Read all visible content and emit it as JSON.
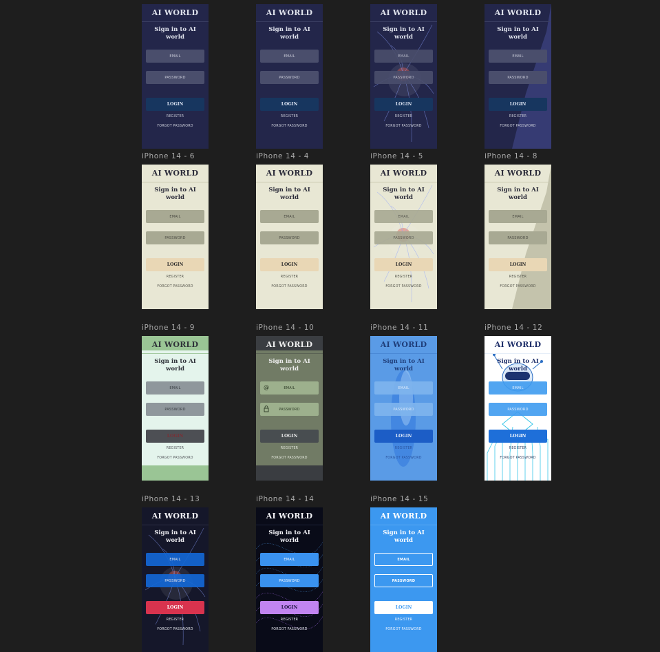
{
  "frames": [
    {
      "label": "",
      "brand": "AI WORLD",
      "headline": "Sign in to AI world",
      "email": "EMAIL",
      "password": "PASSWORD",
      "login": "LOGIN",
      "register": "REGISTER",
      "forgot": "FORGOT PASSWORD",
      "theme": "navy",
      "style": "plain",
      "has_icons": false
    },
    {
      "label": "",
      "brand": "AI WORLD",
      "headline": "Sign in to AI world",
      "email": "EMAIL",
      "password": "PASSWORD",
      "login": "LOGIN",
      "register": "REGISTER",
      "forgot": "FORGOT PASSWORD",
      "theme": "navy",
      "style": "plain",
      "has_icons": false
    },
    {
      "label": "",
      "brand": "AI WORLD",
      "headline": "Sign in to AI world",
      "email": "EMAIL",
      "password": "PASSWORD",
      "login": "LOGIN",
      "register": "REGISTER",
      "forgot": "FORGOT PASSWORD",
      "theme": "navy",
      "style": "plasma",
      "has_icons": false
    },
    {
      "label": "",
      "brand": "AI WORLD",
      "headline": "Sign in to AI world",
      "email": "EMAIL",
      "password": "PASSWORD",
      "login": "LOGIN",
      "register": "REGISTER",
      "forgot": "FORGOT PASSWORD",
      "theme": "navy",
      "style": "diagonal",
      "has_icons": false
    },
    {
      "label": "iPhone 14 - 6",
      "brand": "AI WORLD",
      "headline": "Sign in to AI world",
      "email": "EMAIL",
      "password": "PASSWORD",
      "login": "LOGIN",
      "register": "REGISTER",
      "forgot": "FORGOT PASSWORD",
      "theme": "beige",
      "style": "plain",
      "has_icons": false
    },
    {
      "label": "iPhone 14 - 4",
      "brand": "AI WORLD",
      "headline": "Sign in to AI world",
      "email": "EMAIL",
      "password": "PASSWORD",
      "login": "LOGIN",
      "register": "REGISTER",
      "forgot": "FORGOT PASSWORD",
      "theme": "beige",
      "style": "plain",
      "has_icons": false
    },
    {
      "label": "iPhone 14 - 5",
      "brand": "AI WORLD",
      "headline": "Sign in to AI world",
      "email": "EMAIL",
      "password": "PASSWORD",
      "login": "LOGIN",
      "register": "REGISTER",
      "forgot": "FORGOT PASSWORD",
      "theme": "beige",
      "style": "plasma",
      "has_icons": false
    },
    {
      "label": "iPhone 14 - 8",
      "brand": "AI WORLD",
      "headline": "Sign in to AI world",
      "email": "EMAIL",
      "password": "PASSWORD",
      "login": "LOGIN",
      "register": "REGISTER",
      "forgot": "FORGOT PASSWORD",
      "theme": "beige",
      "style": "diagonal",
      "has_icons": false
    },
    {
      "label": "iPhone 14 - 9",
      "brand": "AI WORLD",
      "headline": "Sign in to AI world",
      "email": "EMAIL",
      "password": "PASSWORD",
      "login": "LOGIN",
      "register": "REGISTER",
      "forgot": "FORGOT PASSWORD",
      "theme": "mint",
      "style": "bands",
      "has_icons": false
    },
    {
      "label": "iPhone 14 - 10",
      "brand": "AI WORLD",
      "headline": "Sign in to AI world",
      "email": "EMAIL",
      "password": "PASSWORD",
      "login": "LOGIN",
      "register": "REGISTER",
      "forgot": "FORGOT PASSWORD",
      "theme": "olive",
      "style": "bands",
      "has_icons": true
    },
    {
      "label": "iPhone 14 - 11",
      "brand": "AI WORLD",
      "headline": "Sign in to AI world",
      "email": "EMAIL",
      "password": "PASSWORD",
      "login": "LOGIN",
      "register": "REGISTER",
      "forgot": "FORGOT PASSWORD",
      "theme": "azure",
      "style": "smoke",
      "has_icons": false
    },
    {
      "label": "iPhone 14 - 12",
      "brand": "AI WORLD",
      "headline": "Sign in to AI world",
      "email": "EMAIL",
      "password": "PASSWORD",
      "login": "LOGIN",
      "register": "REGISTER",
      "forgot": "FORGOT PASSWORD",
      "theme": "robot",
      "style": "circuit",
      "has_icons": false
    },
    {
      "label": "iPhone 14 - 13",
      "brand": "AI WORLD",
      "headline": "Sign in to AI world",
      "email": "EMAIL",
      "password": "PASSWORD",
      "login": "LOGIN",
      "register": "REGISTER",
      "forgot": "FORGOT PASSWORD",
      "theme": "dark-plasma",
      "style": "plasma",
      "has_icons": false
    },
    {
      "label": "iPhone 14 - 14",
      "brand": "AI WORLD",
      "headline": "Sign in to AI world",
      "email": "EMAIL",
      "password": "PASSWORD",
      "login": "LOGIN",
      "register": "REGISTER",
      "forgot": "FORGOT PASSWORD",
      "theme": "wave",
      "style": "wave",
      "has_icons": false
    },
    {
      "label": "iPhone 14 - 15",
      "brand": "AI WORLD",
      "headline": "Sign in to AI world",
      "email": "EMAIL",
      "password": "PASSWORD",
      "login": "LOGIN",
      "register": "REGISTER",
      "forgot": "FORGOT PASSWORD",
      "theme": "sky",
      "style": "outline",
      "has_icons": false
    }
  ],
  "themes": {
    "navy": {
      "bg": "#23264a",
      "text": "#dfe2ec",
      "field": "#4a4e6c",
      "fieldText": "#c7c9d6",
      "login": "#17365f",
      "loginText": "#dbe3f2",
      "link": "#c5c8d4",
      "line": "#3b3f63"
    },
    "beige": {
      "bg": "#e8e7d4",
      "text": "#2c2c3a",
      "field": "#a8a993",
      "fieldText": "#4c4c44",
      "login": "#e9d7b5",
      "loginText": "#2c2c2c",
      "link": "#55554c",
      "line": "#c9c8b0"
    },
    "mint": {
      "bg": "#e4f4ec",
      "text": "#2e3138",
      "field": "#8f979c",
      "fieldText": "#3b4045",
      "login": "#4d4f54",
      "loginText": "#7a3036",
      "link": "#55585c",
      "line": "#a3caa0"
    },
    "olive": {
      "bg": "#717b65",
      "text": "#ededed",
      "field": "#9db08d",
      "fieldText": "#2d3a26",
      "login": "#484d50",
      "loginText": "#e6e6e6",
      "link": "#dfe3d8",
      "line": "#5a6254"
    },
    "azure": {
      "bg": "#5a9be6",
      "text": "#1f3e7a",
      "field": "#7fb5ee",
      "fieldText": "#e9f2fc",
      "login": "#1c5dc6",
      "loginText": "#e5eefb",
      "link": "#2a55a0",
      "line": "#4a89d6"
    },
    "robot": {
      "bg": "#ffffff",
      "text": "#1d2d68",
      "field": "#3f9cf0",
      "fieldText": "#e7f2ff",
      "login": "#1e6fd9",
      "loginText": "#ffffff",
      "link": "#3a4a6a",
      "line": "#e6eef8"
    },
    "dark-plasma": {
      "bg": "#15172a",
      "text": "#f0f0f4",
      "field": "#1369d8",
      "fieldText": "#eef4ff",
      "login": "#d8334e",
      "loginText": "#ffffff",
      "link": "#e3e5ec",
      "line": "#2b2e45"
    },
    "wave": {
      "bg": "#090b18",
      "text": "#f2f2f6",
      "field": "#3a92ef",
      "fieldText": "#eef6ff",
      "login": "#c184f0",
      "loginText": "#1d1340",
      "link": "#e5e7f0",
      "line": "#1d2238"
    },
    "sky": {
      "bg": "#3c98f0",
      "text": "#ffffff",
      "field": "#3c98f0",
      "fieldText": "#ffffff",
      "login": "#ffffff",
      "loginText": "#3c98f0",
      "link": "#f0f6ff",
      "line": "#5aa9f3"
    }
  }
}
